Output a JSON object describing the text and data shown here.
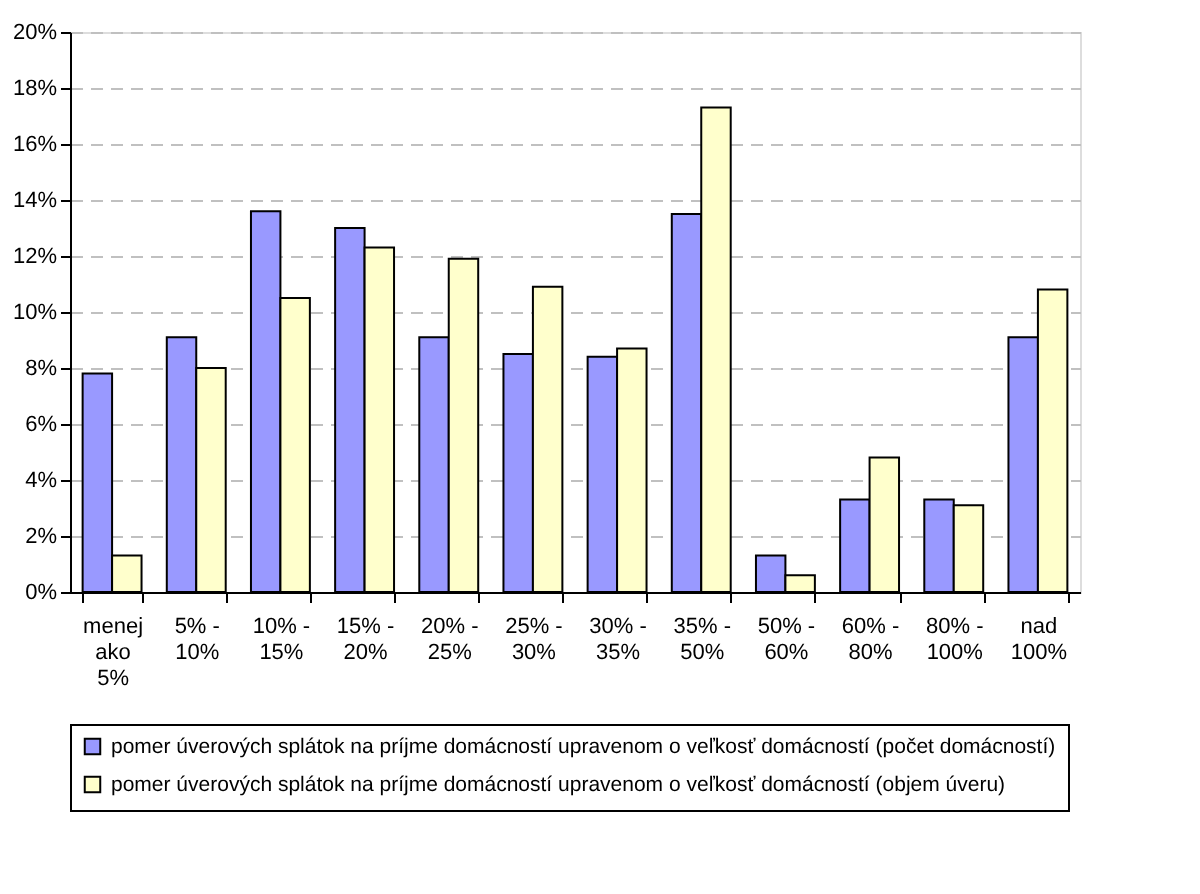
{
  "chart_data": {
    "type": "bar",
    "categories": [
      "menej ako 5%",
      "5% - 10%",
      "10% - 15%",
      "15% - 20%",
      "20% - 25%",
      "25% - 30%",
      "30% - 35%",
      "35% - 50%",
      "50% - 60%",
      "60% - 80%",
      "80% - 100%",
      "nad 100%"
    ],
    "series": [
      {
        "name": "pomer úverových splátok na príjme domácností upravenom o veľkosť domácností (počet domácností)",
        "color": "#9999ff",
        "values": [
          7.8,
          9.1,
          13.6,
          13.0,
          9.1,
          8.5,
          8.4,
          13.5,
          1.3,
          3.3,
          3.3,
          9.1
        ]
      },
      {
        "name": "pomer úverových splátok na príjme domácností upravenom o veľkosť domácností (objem úveru)",
        "color": "#ffffcc",
        "values": [
          1.3,
          8.0,
          10.5,
          12.3,
          11.9,
          10.9,
          8.7,
          17.3,
          0.6,
          4.8,
          3.1,
          10.8
        ]
      }
    ],
    "ylim": [
      0,
      20
    ],
    "yticks": [
      {
        "value": 0,
        "label": "0%"
      },
      {
        "value": 2,
        "label": "2%"
      },
      {
        "value": 4,
        "label": "4%"
      },
      {
        "value": 6,
        "label": "6%"
      },
      {
        "value": 8,
        "label": "8%"
      },
      {
        "value": 10,
        "label": "10%"
      },
      {
        "value": 12,
        "label": "12%"
      },
      {
        "value": 14,
        "label": "14%"
      },
      {
        "value": 16,
        "label": "16%"
      },
      {
        "value": 18,
        "label": "18%"
      },
      {
        "value": 20,
        "label": "20%"
      }
    ],
    "grid": "y",
    "legend": "bottom"
  }
}
